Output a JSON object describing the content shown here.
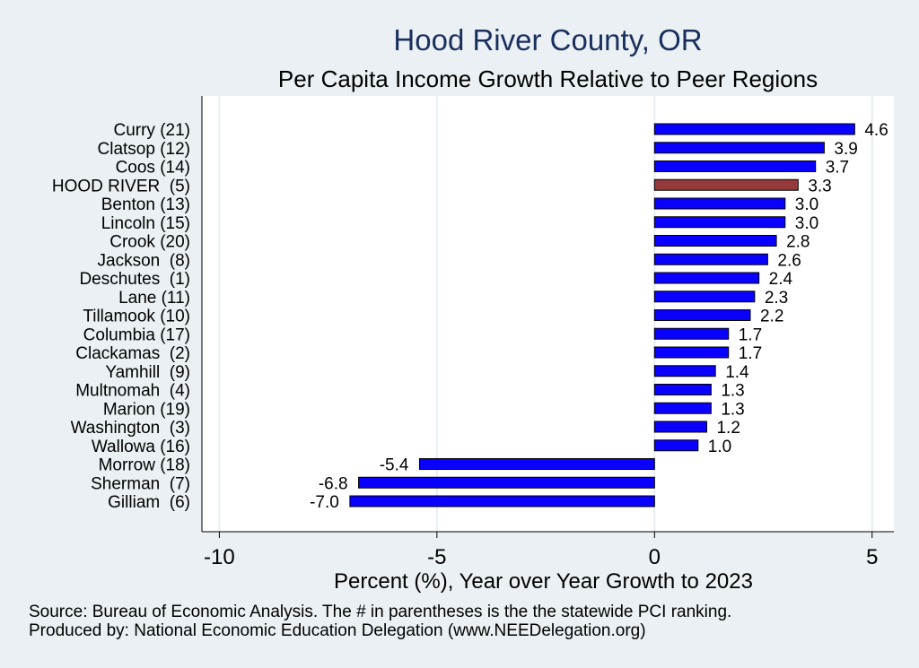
{
  "chart_data": {
    "type": "bar",
    "orientation": "horizontal",
    "title": "Hood River County, OR",
    "subtitle": "Per Capita Income Growth Relative to Peer Regions",
    "xlabel": "Percent (%), Year over Year Growth to 2023",
    "ylabel": "",
    "xlim": [
      -10.4,
      5.5
    ],
    "xticks": [
      -10,
      -5,
      0,
      5
    ],
    "grid": true,
    "categories": [
      "Curry (21)",
      "Clatsop (12)",
      "Coos (14)",
      "HOOD RIVER  (5)",
      "Benton (13)",
      "Lincoln (15)",
      "Crook (20)",
      "Jackson  (8)",
      "Deschutes  (1)",
      "Lane (11)",
      "Tillamook (10)",
      "Columbia (17)",
      "Clackamas  (2)",
      "Yamhill  (9)",
      "Multnomah  (4)",
      "Marion (19)",
      "Washington  (3)",
      "Wallowa (16)",
      "Morrow (18)",
      "Sherman  (7)",
      "Gilliam  (6)"
    ],
    "values": [
      4.6,
      3.9,
      3.7,
      3.3,
      3.0,
      3.0,
      2.8,
      2.6,
      2.4,
      2.3,
      2.2,
      1.7,
      1.7,
      1.4,
      1.3,
      1.3,
      1.2,
      1.0,
      -5.4,
      -6.8,
      -7.0
    ],
    "data_labels": [
      "4.6",
      "3.9",
      "3.7",
      "3.3",
      "3.0",
      "3.0",
      "2.8",
      "2.6",
      "2.4",
      "2.3",
      "2.2",
      "1.7",
      "1.7",
      "1.4",
      "1.3",
      "1.3",
      "1.2",
      "1.0",
      "-5.4",
      "-6.8",
      "-7.0"
    ],
    "highlight_category": "HOOD RIVER  (5)",
    "colors": {
      "bar": "#0a00ff",
      "highlight": "#943a3a",
      "bar_outline": "#000000",
      "title": "#1a2f5e",
      "background": "#eaf0f3",
      "plot_background": "#ffffff",
      "grid": "#e6eef2"
    }
  },
  "notes": {
    "source": "Source: Bureau of Economic Analysis. The # in parentheses is the the statewide PCI ranking.",
    "producer": "Produced by: National Economic Education Delegation (www.NEEDelegation.org)"
  }
}
